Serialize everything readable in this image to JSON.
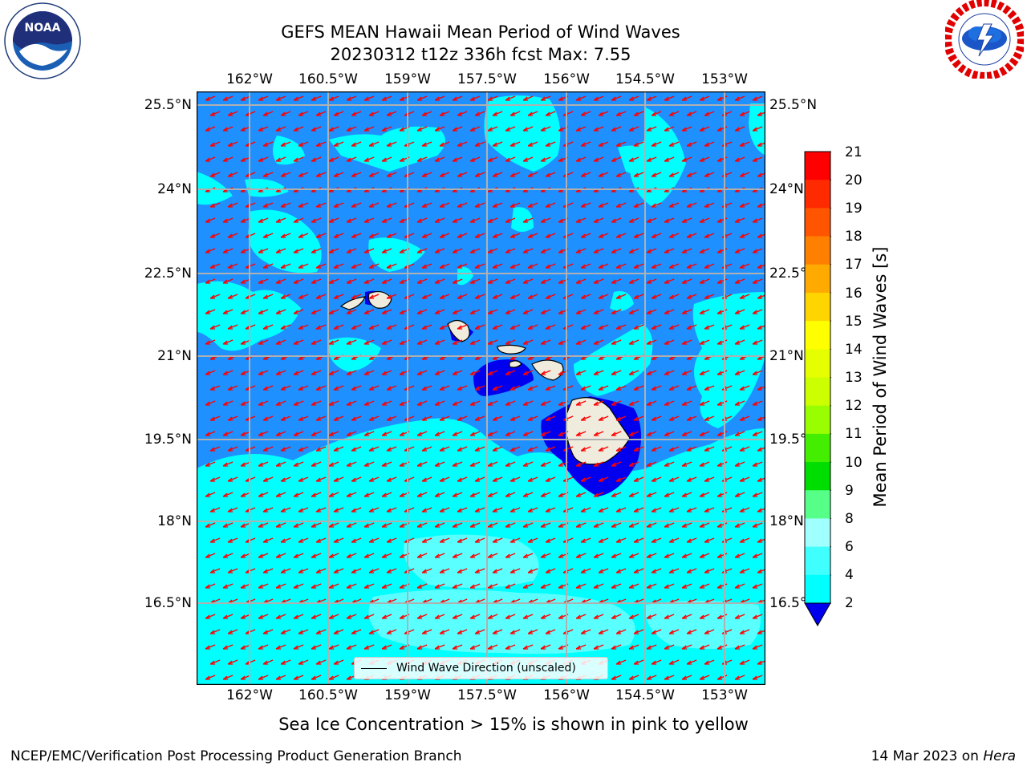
{
  "title_line1": "GEFS MEAN Hawaii Mean Period of Wind Waves",
  "title_line2": "20230312 t12z 336h fcst   Max: 7.55",
  "logos": {
    "noaa": {
      "text": "NOAA",
      "ring_text": "NATIONAL OCEANIC AND ATMOSPHERIC ADMINISTRATION · U.S. DEPARTMENT OF COMMERCE"
    },
    "nws": {
      "ring_text": "NATIONAL WEATHER SERVICE"
    }
  },
  "map": {
    "lon_ticks": [
      "162°W",
      "160.5°W",
      "159°W",
      "157.5°W",
      "156°W",
      "154.5°W",
      "153°W"
    ],
    "lat_ticks": [
      "25.5°N",
      "24°N",
      "22.5°N",
      "21°N",
      "19.5°N",
      "18°N",
      "16.5°N"
    ],
    "ocean_color": "#1e90ff",
    "lighter_color": "#00ffff",
    "lighter2_color": "#80ffff",
    "calm_color": "#0000ee",
    "land_color": "#efebdd",
    "arrow_color": "#ff0000",
    "grid_color": "#b0b0b0",
    "legend_label": "Wind Wave Direction (unscaled)"
  },
  "colorbar": {
    "label": "Mean Period of Wind Waves [s]",
    "ticks": [
      "21",
      "20",
      "19",
      "18",
      "17",
      "16",
      "15",
      "14",
      "13",
      "12",
      "11",
      "10",
      "9",
      "8",
      "6",
      "4",
      "2"
    ],
    "colors": [
      "#ff0000",
      "#ff2a00",
      "#ff5500",
      "#ff8000",
      "#ffaa00",
      "#ffd500",
      "#ffff00",
      "#e6ff00",
      "#ccff00",
      "#99ff00",
      "#44ee00",
      "#00dd00",
      "#55ff88",
      "#a0ffff",
      "#40ffff",
      "#00ffff",
      "#1e90ff"
    ],
    "extend_color": "#0000ee"
  },
  "caption": "Sea Ice Concentration > 15% is shown in pink to yellow",
  "footer_left": "NCEP/EMC/Verification Post Processing Product Generation Branch",
  "footer_right_date": "14 Mar 2023 on",
  "footer_right_host": "Hera"
}
